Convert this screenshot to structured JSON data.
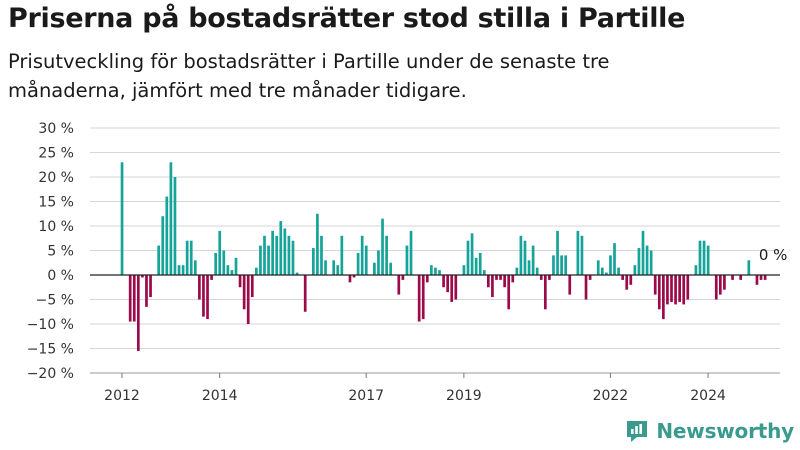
{
  "header": {
    "title": "Priserna på bostadsrätter stod stilla i Partille",
    "subtitle": "Prisutveckling för bostadsrätter i Partille under de senaste tre månaderna, jämfört med tre månader tidigare."
  },
  "brand": {
    "name": "Newsworthy",
    "icon": "newsworthy-logo-icon"
  },
  "colors": {
    "positive": "#16a39a",
    "negative": "#9d0a4a",
    "brand": "#3a9a8e"
  },
  "chart_data": {
    "type": "bar",
    "title": "Priserna på bostadsrätter stod stilla i Partille",
    "subtitle": "Prisutveckling för bostadsrätter i Partille under de senaste tre månaderna, jämfört med tre månader tidigare.",
    "ylim": [
      -20,
      30
    ],
    "yticks": [
      -20,
      -15,
      -10,
      -5,
      0,
      5,
      10,
      15,
      20,
      25,
      30
    ],
    "ytick_labels": [
      "−20 %",
      "−15 %",
      "−10 %",
      "−5 %",
      "0 %",
      "5 %",
      "10 %",
      "15 %",
      "20 %",
      "25 %",
      "30 %"
    ],
    "x_tick_labels": [
      "2012",
      "2014",
      "2017",
      "2019",
      "2022",
      "2024"
    ],
    "x_start": "2012-01",
    "grid": true,
    "last_value_label": "0 %",
    "values": [
      23,
      0,
      -9.5,
      -9.5,
      -15.5,
      -0.5,
      -6.5,
      -4.5,
      0,
      6,
      12,
      16,
      23,
      20,
      2,
      2,
      7,
      7,
      3,
      -5,
      -8.5,
      -9,
      -1,
      4.5,
      9,
      5,
      2,
      1,
      3.5,
      -2.5,
      -7,
      -10,
      -4.5,
      1.5,
      6,
      8,
      6,
      9,
      8,
      11,
      9.5,
      8,
      7,
      0.5,
      0,
      -7.5,
      0,
      5.5,
      12.5,
      8,
      3,
      0,
      3,
      2,
      8,
      0,
      -1.5,
      -0.5,
      4.5,
      8,
      6,
      0,
      2.5,
      5,
      11.5,
      8,
      2.5,
      0,
      -4,
      -1,
      6,
      9,
      0,
      -9.5,
      -9,
      -1.5,
      2,
      1.5,
      1,
      -2.5,
      -3.5,
      -5.5,
      -5,
      0,
      2,
      7,
      8.5,
      3.5,
      4.5,
      1,
      -2.5,
      -4.5,
      -1,
      -1,
      -2.5,
      -7,
      -1.5,
      1.5,
      8,
      7,
      3,
      6,
      1.5,
      -1,
      -7,
      -1,
      4,
      9,
      4,
      4,
      -4,
      0,
      9,
      8,
      -5,
      -1,
      0,
      3,
      1.5,
      0.5,
      4,
      6.5,
      1.5,
      -1,
      -3,
      -2,
      2,
      5.5,
      9,
      6,
      5,
      -4,
      -7,
      -9,
      -6,
      -5.5,
      -6,
      -5.5,
      -6,
      -5,
      0,
      2,
      7,
      7,
      6,
      0,
      -5,
      -4,
      -3,
      0,
      -1,
      0,
      -1,
      0,
      3,
      0,
      -2,
      -1,
      -1,
      0
    ]
  }
}
